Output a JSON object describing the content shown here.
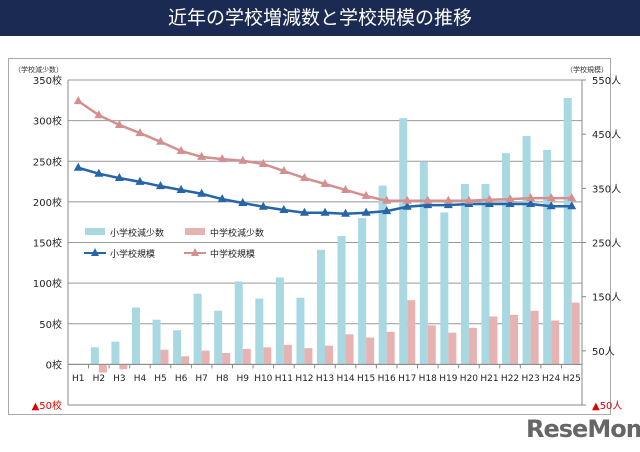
{
  "header": {
    "title": "近年の学校増減数と学校規模の推移"
  },
  "chart_data": {
    "type": "bar+line",
    "categories": [
      "H1",
      "H2",
      "H3",
      "H4",
      "H5",
      "H6",
      "H7",
      "H8",
      "H9",
      "H10",
      "H11",
      "H12",
      "H13",
      "H14",
      "H15",
      "H16",
      "H17",
      "H18",
      "H19",
      "H20",
      "H21",
      "H22",
      "H23",
      "H24",
      "H25"
    ],
    "left_axis": {
      "label": "（学校減少数）",
      "ylim": [
        -50,
        350
      ],
      "ticks": [
        "▲50校",
        "0校",
        "50校",
        "100校",
        "150校",
        "200校",
        "250校",
        "300校",
        "350校"
      ],
      "tick_values": [
        -50,
        0,
        50,
        100,
        150,
        200,
        250,
        300,
        350
      ]
    },
    "right_axis": {
      "label": "（学校規模）",
      "ylim": [
        -50,
        550
      ],
      "ticks": [
        "▲50人",
        "50人",
        "150人",
        "250人",
        "350人",
        "450人",
        "550人"
      ],
      "tick_values": [
        -50,
        50,
        150,
        250,
        350,
        450,
        550
      ]
    },
    "grid": true,
    "legend_placement": "left-middle",
    "series": [
      {
        "name": "小学校減少数",
        "kind": "bar",
        "axis": "left",
        "color": "#a8d8e2",
        "values": [
          0,
          21,
          28,
          70,
          55,
          42,
          87,
          66,
          102,
          81,
          107,
          82,
          141,
          158,
          180,
          220,
          303,
          249,
          187,
          222,
          222,
          260,
          281,
          264,
          328
        ]
      },
      {
        "name": "中学校減少数",
        "kind": "bar",
        "axis": "left",
        "color": "#e6b2b2",
        "values": [
          0,
          -10,
          -6,
          0,
          18,
          10,
          17,
          14,
          19,
          21,
          24,
          20,
          23,
          37,
          33,
          40,
          79,
          48,
          39,
          45,
          59,
          61,
          66,
          54,
          76
        ]
      },
      {
        "name": "小学校規模",
        "kind": "line",
        "axis": "right",
        "color": "#2565a8",
        "values": [
          388,
          377,
          369,
          362,
          354,
          347,
          340,
          330,
          323,
          316,
          310,
          305,
          305,
          303,
          305,
          308,
          316,
          319,
          319,
          321,
          321,
          321,
          321,
          317,
          317
        ]
      },
      {
        "name": "中学校規模",
        "kind": "line",
        "axis": "right",
        "color": "#d48f8f",
        "values": [
          511,
          485,
          467,
          452,
          436,
          419,
          408,
          404,
          401,
          395,
          382,
          369,
          358,
          347,
          336,
          327,
          327,
          327,
          327,
          327,
          329,
          330,
          332,
          332,
          332
        ]
      }
    ]
  },
  "watermark": "ReseMom"
}
